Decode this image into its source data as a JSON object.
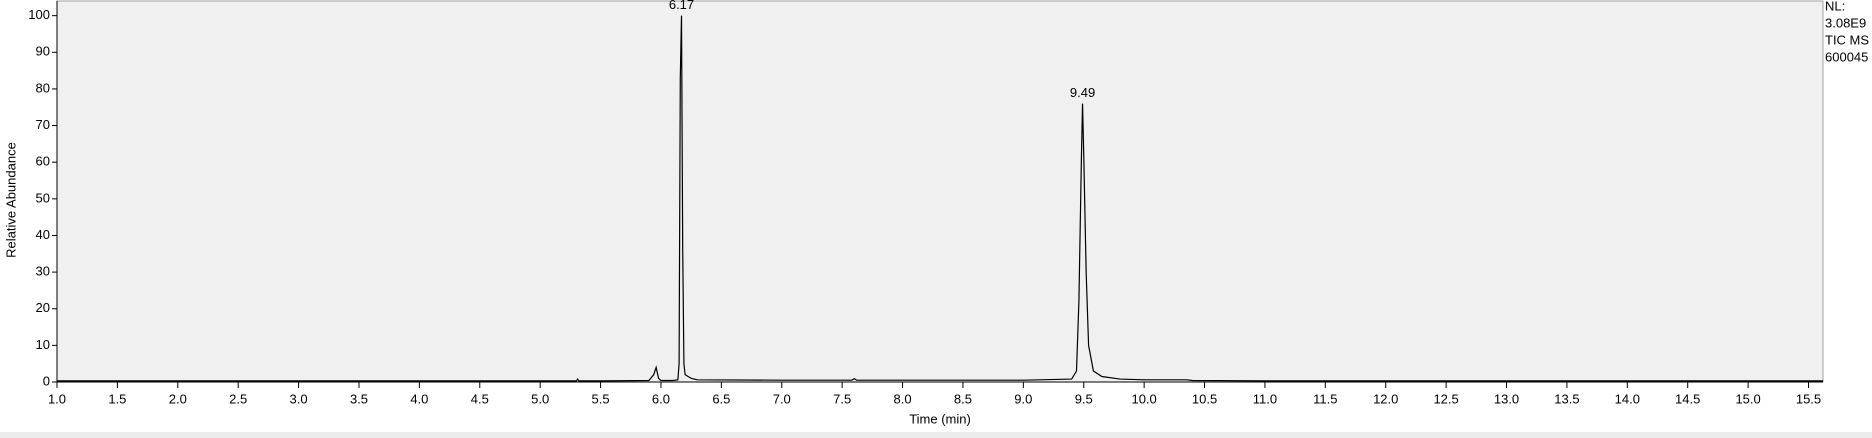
{
  "chart_data": {
    "type": "line",
    "x_label": "Time (min)",
    "y_label": "Relative Abundance",
    "x": [
      1.0,
      2.0,
      3.0,
      4.0,
      5.0,
      5.3,
      5.31,
      5.32,
      5.5,
      5.9,
      5.94,
      5.96,
      5.98,
      6.0,
      6.1,
      6.14,
      6.15,
      6.16,
      6.17,
      6.18,
      6.19,
      6.2,
      6.25,
      6.3,
      7.0,
      7.58,
      7.6,
      7.62,
      8.0,
      9.0,
      9.4,
      9.44,
      9.46,
      9.48,
      9.49,
      9.5,
      9.52,
      9.54,
      9.58,
      9.65,
      9.8,
      10.0,
      10.35,
      10.4,
      11.0,
      12.0,
      13.0,
      14.0,
      15.0,
      15.62
    ],
    "series": [
      {
        "name": "TIC MS",
        "color": "#000000",
        "values": [
          0.3,
          0.3,
          0.3,
          0.3,
          0.3,
          0.3,
          0.8,
          0.3,
          0.3,
          0.4,
          2,
          4,
          1,
          0.4,
          0.4,
          0.6,
          5,
          83,
          100,
          36,
          5,
          2,
          1,
          0.6,
          0.5,
          0.5,
          0.9,
          0.5,
          0.5,
          0.5,
          0.8,
          3,
          22,
          60,
          76,
          62,
          30,
          10,
          3,
          1.5,
          0.8,
          0.6,
          0.6,
          0.4,
          0.3,
          0.3,
          0.3,
          0.3,
          0.3,
          0.3
        ]
      }
    ],
    "xlim": [
      1.0,
      15.62
    ],
    "ylim": [
      0,
      104
    ],
    "xticks": [
      {
        "value": 1.0,
        "label": "1.0"
      },
      {
        "value": 1.5,
        "label": "1.5"
      },
      {
        "value": 2.0,
        "label": "2.0"
      },
      {
        "value": 2.5,
        "label": "2.5"
      },
      {
        "value": 3.0,
        "label": "3.0"
      },
      {
        "value": 3.5,
        "label": "3.5"
      },
      {
        "value": 4.0,
        "label": "4.0"
      },
      {
        "value": 4.5,
        "label": "4.5"
      },
      {
        "value": 5.0,
        "label": "5.0"
      },
      {
        "value": 5.5,
        "label": "5.5"
      },
      {
        "value": 6.0,
        "label": "6.0"
      },
      {
        "value": 6.5,
        "label": "6.5"
      },
      {
        "value": 7.0,
        "label": "7.0"
      },
      {
        "value": 7.5,
        "label": "7.5"
      },
      {
        "value": 8.0,
        "label": "8.0"
      },
      {
        "value": 8.5,
        "label": "8.5"
      },
      {
        "value": 9.0,
        "label": "9.0"
      },
      {
        "value": 9.5,
        "label": "9.5"
      },
      {
        "value": 10.0,
        "label": "10.0"
      },
      {
        "value": 10.5,
        "label": "10.5"
      },
      {
        "value": 11.0,
        "label": "11.0"
      },
      {
        "value": 11.5,
        "label": "11.5"
      },
      {
        "value": 12.0,
        "label": "12.0"
      },
      {
        "value": 12.5,
        "label": "12.5"
      },
      {
        "value": 13.0,
        "label": "13.0"
      },
      {
        "value": 13.5,
        "label": "13.5"
      },
      {
        "value": 14.0,
        "label": "14.0"
      },
      {
        "value": 14.5,
        "label": "14.5"
      },
      {
        "value": 15.0,
        "label": "15.0"
      },
      {
        "value": 15.5,
        "label": "15.5"
      }
    ],
    "yticks": [
      0,
      10,
      20,
      30,
      40,
      50,
      60,
      70,
      80,
      90,
      100
    ],
    "annotations": [
      {
        "label": "6.17",
        "x": 6.17,
        "y": 100
      },
      {
        "label": "9.49",
        "x": 9.49,
        "y": 76
      }
    ],
    "info": [
      "NL:",
      "3.08E9",
      "TIC MS",
      "600045"
    ]
  }
}
